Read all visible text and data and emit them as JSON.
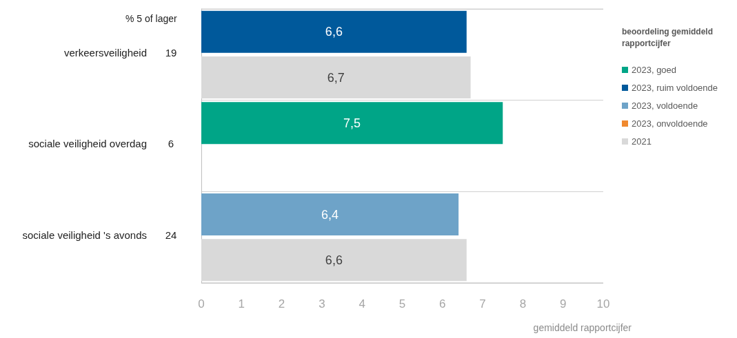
{
  "chart_data": {
    "type": "bar",
    "orientation": "horizontal",
    "categories": [
      "verkeersveiligheid",
      null,
      "sociale veiligheid overdag",
      null,
      "sociale veiligheid 's avonds",
      null
    ],
    "series": [
      {
        "name": "2023, goed",
        "color": "#00a587",
        "values": [
          null,
          null,
          7.5,
          null,
          null,
          null
        ],
        "value_labels": [
          null,
          null,
          "7,5",
          null,
          null,
          null
        ]
      },
      {
        "name": "2023, ruim voldoende",
        "color": "#00599b",
        "values": [
          6.6,
          null,
          null,
          null,
          null,
          null
        ],
        "value_labels": [
          "6,6",
          null,
          null,
          null,
          null,
          null
        ]
      },
      {
        "name": "2023, voldoende",
        "color": "#6ea3c8",
        "values": [
          null,
          null,
          null,
          null,
          6.4,
          null
        ],
        "value_labels": [
          null,
          null,
          null,
          null,
          "6,4",
          null
        ]
      },
      {
        "name": "2023, onvoldoende",
        "color": "#f0892e",
        "values": [
          null,
          null,
          null,
          null,
          null,
          null
        ]
      },
      {
        "name": "2021",
        "color": "#d9d9d9",
        "values": [
          null,
          6.7,
          null,
          null,
          null,
          6.6
        ],
        "value_labels": [
          null,
          "6,7",
          null,
          null,
          null,
          "6,6"
        ]
      }
    ],
    "xlim": [
      0,
      10
    ],
    "xticks": [
      0,
      1,
      2,
      3,
      4,
      5,
      6,
      7,
      8,
      9,
      10
    ],
    "xlabel": "gemiddeld rapportcijfer",
    "legend_title": "beoordeling gemiddeld rapportcijfer",
    "legend": "right",
    "grid": "y",
    "annotations": [
      "% 5 of lager",
      "19",
      "6",
      "24"
    ]
  }
}
